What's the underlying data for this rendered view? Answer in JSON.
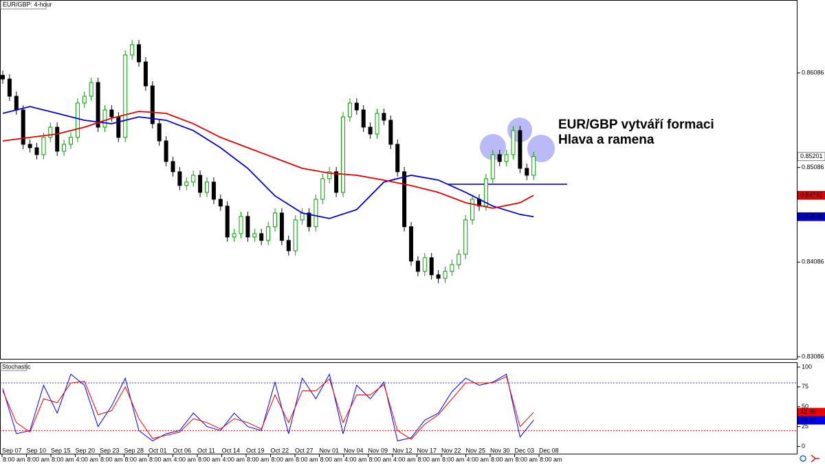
{
  "chart_data": [
    {
      "type": "candlestick",
      "title": "EUR/GBP: 4-hour",
      "annotation": [
        "EUR/GBP vytváří formaci",
        "Hlava a ramena"
      ],
      "up_color": "#00a000",
      "down_color": "#000000",
      "ylim": [
        0.83064,
        0.86856
      ],
      "yticks": [
        0.86086,
        0.85086,
        0.84086,
        0.83086
      ],
      "ohlc": [
        [
          0.8606,
          0.8611,
          0.85971,
          0.86021
        ],
        [
          0.86021,
          0.86071,
          0.85789,
          0.85839
        ],
        [
          0.85839,
          0.85889,
          0.85644,
          0.85694
        ],
        [
          0.85694,
          0.85744,
          0.85281,
          0.85331
        ],
        [
          0.85331,
          0.85381,
          0.85245,
          0.85295
        ],
        [
          0.85295,
          0.85345,
          0.85172,
          0.85222
        ],
        [
          0.85222,
          0.85454,
          0.85172,
          0.85404
        ],
        [
          0.85404,
          0.85562,
          0.85354,
          0.85512
        ],
        [
          0.85512,
          0.85562,
          0.85208,
          0.85258
        ],
        [
          0.85258,
          0.85381,
          0.85208,
          0.85331
        ],
        [
          0.85331,
          0.85454,
          0.85281,
          0.85404
        ],
        [
          0.85404,
          0.85817,
          0.85354,
          0.85767
        ],
        [
          0.85767,
          0.85889,
          0.85717,
          0.85839
        ],
        [
          0.85839,
          0.86034,
          0.85789,
          0.85984
        ],
        [
          0.85984,
          0.86034,
          0.85462,
          0.85512
        ],
        [
          0.85512,
          0.85744,
          0.85462,
          0.85694
        ],
        [
          0.85694,
          0.85744,
          0.85571,
          0.85621
        ],
        [
          0.85621,
          0.85671,
          0.85354,
          0.85404
        ],
        [
          0.85404,
          0.86325,
          0.85354,
          0.86275
        ],
        [
          0.86275,
          0.86434,
          0.86225,
          0.86384
        ],
        [
          0.86384,
          0.86434,
          0.86152,
          0.86202
        ],
        [
          0.86202,
          0.86252,
          0.85898,
          0.85948
        ],
        [
          0.85948,
          0.85998,
          0.85499,
          0.85549
        ],
        [
          0.85549,
          0.85599,
          0.85317,
          0.85367
        ],
        [
          0.85367,
          0.85417,
          0.85099,
          0.85149
        ],
        [
          0.85149,
          0.85199,
          0.84991,
          0.85041
        ],
        [
          0.85041,
          0.85091,
          0.84846,
          0.84896
        ],
        [
          0.84896,
          0.84982,
          0.84846,
          0.84932
        ],
        [
          0.84932,
          0.85054,
          0.84882,
          0.85004
        ],
        [
          0.85004,
          0.85054,
          0.84773,
          0.84823
        ],
        [
          0.84823,
          0.84982,
          0.84773,
          0.84932
        ],
        [
          0.84932,
          0.84982,
          0.847,
          0.8475
        ],
        [
          0.8475,
          0.848,
          0.84628,
          0.84678
        ],
        [
          0.84678,
          0.84728,
          0.84301,
          0.84351
        ],
        [
          0.84351,
          0.84437,
          0.84301,
          0.84387
        ],
        [
          0.84387,
          0.84619,
          0.84337,
          0.84569
        ],
        [
          0.84569,
          0.84619,
          0.84301,
          0.84351
        ],
        [
          0.84351,
          0.84437,
          0.84301,
          0.84387
        ],
        [
          0.84387,
          0.84437,
          0.84265,
          0.84315
        ],
        [
          0.84315,
          0.8451,
          0.84265,
          0.8446
        ],
        [
          0.8446,
          0.84655,
          0.8441,
          0.84605
        ],
        [
          0.84605,
          0.84655,
          0.84265,
          0.84315
        ],
        [
          0.84315,
          0.84365,
          0.84156,
          0.84206
        ],
        [
          0.84206,
          0.84582,
          0.84156,
          0.84532
        ],
        [
          0.84532,
          0.84655,
          0.84482,
          0.84605
        ],
        [
          0.84605,
          0.84655,
          0.8441,
          0.8446
        ],
        [
          0.8446,
          0.848,
          0.8441,
          0.8475
        ],
        [
          0.8475,
          0.85018,
          0.847,
          0.84968
        ],
        [
          0.84968,
          0.85091,
          0.84918,
          0.85041
        ],
        [
          0.85041,
          0.85091,
          0.84773,
          0.84823
        ],
        [
          0.84823,
          0.85671,
          0.84773,
          0.85621
        ],
        [
          0.85621,
          0.85817,
          0.85571,
          0.85767
        ],
        [
          0.85767,
          0.85817,
          0.85644,
          0.85694
        ],
        [
          0.85694,
          0.85744,
          0.85462,
          0.85512
        ],
        [
          0.85512,
          0.85562,
          0.8539,
          0.8544
        ],
        [
          0.8544,
          0.85708,
          0.8539,
          0.85658
        ],
        [
          0.85658,
          0.85708,
          0.85535,
          0.85585
        ],
        [
          0.85585,
          0.85635,
          0.85281,
          0.85331
        ],
        [
          0.85331,
          0.85381,
          0.84991,
          0.85041
        ],
        [
          0.85041,
          0.85091,
          0.8441,
          0.8446
        ],
        [
          0.8446,
          0.8451,
          0.84047,
          0.84097
        ],
        [
          0.84097,
          0.84147,
          0.83938,
          0.83988
        ],
        [
          0.83988,
          0.84183,
          0.83938,
          0.84133
        ],
        [
          0.84133,
          0.84183,
          0.83902,
          0.83952
        ],
        [
          0.83952,
          0.84002,
          0.83865,
          0.83915
        ],
        [
          0.83915,
          0.84038,
          0.83865,
          0.83988
        ],
        [
          0.83988,
          0.8411,
          0.83938,
          0.8406
        ],
        [
          0.8406,
          0.84219,
          0.8401,
          0.84169
        ],
        [
          0.84169,
          0.84582,
          0.84119,
          0.84532
        ],
        [
          0.84532,
          0.848,
          0.84482,
          0.8475
        ],
        [
          0.8475,
          0.848,
          0.84628,
          0.84678
        ],
        [
          0.84678,
          0.85018,
          0.84628,
          0.84968
        ],
        [
          0.84968,
          0.85272,
          0.84918,
          0.85222
        ],
        [
          0.85222,
          0.85272,
          0.85099,
          0.85149
        ],
        [
          0.85149,
          0.85272,
          0.85099,
          0.85222
        ],
        [
          0.85222,
          0.85526,
          0.85172,
          0.85476
        ],
        [
          0.85476,
          0.85526,
          0.85027,
          0.85077
        ],
        [
          0.85077,
          0.85127,
          0.84954,
          0.85004
        ],
        [
          0.85004,
          0.85251,
          0.84954,
          0.85201
        ]
      ],
      "series": [
        {
          "color": "#0000cc",
          "x": [
            0,
            4,
            8,
            12,
            16,
            20,
            24,
            28,
            32,
            36,
            40,
            44,
            48,
            52,
            56,
            60,
            64,
            68,
            72,
            76,
            78
          ],
          "values": [
            0.85658,
            0.8573,
            0.85658,
            0.85585,
            0.85549,
            0.85621,
            0.85585,
            0.85476,
            0.85295,
            0.85077,
            0.84786,
            0.84605,
            0.84547,
            0.84641,
            0.84932,
            0.85004,
            0.84953,
            0.84823,
            0.84678,
            0.8459,
            0.84566
          ]
        },
        {
          "color": "#e00000",
          "x": [
            0,
            4,
            8,
            12,
            16,
            20,
            24,
            28,
            32,
            36,
            40,
            44,
            48,
            52,
            56,
            60,
            64,
            68,
            72,
            76,
            78
          ],
          "values": [
            0.85367,
            0.85404,
            0.8544,
            0.85512,
            0.85607,
            0.85679,
            0.85658,
            0.85549,
            0.85404,
            0.85295,
            0.85186,
            0.85077,
            0.85026,
            0.85004,
            0.84953,
            0.84895,
            0.84823,
            0.84714,
            0.84656,
            0.84714,
            0.84792
          ]
        }
      ],
      "xlabels": [
        {
          "date": "Sep 07",
          "time": "8:00 am"
        },
        {
          "date": "Sep 10",
          "time": "8:00 am"
        },
        {
          "date": "Sep 15",
          "time": "8:00 am"
        },
        {
          "date": "Sep 20",
          "time": "4:00 am"
        },
        {
          "date": "Sep 23",
          "time": "8:00 am"
        },
        {
          "date": "Sep 28",
          "time": "8:00 am"
        },
        {
          "date": "Oct 01",
          "time": "8:00 am"
        },
        {
          "date": "Oct 06",
          "time": "4:00 am"
        },
        {
          "date": "Oct 11",
          "time": "8:00 am"
        },
        {
          "date": "Oct 14",
          "time": "4:00 am"
        },
        {
          "date": "Oct 19",
          "time": "8:00 am"
        },
        {
          "date": "Oct 22",
          "time": "8:00 am"
        },
        {
          "date": "Oct 27",
          "time": "8:00 am"
        },
        {
          "date": "Nov 01",
          "time": "8:00 am"
        },
        {
          "date": "Nov 04",
          "time": "4:00 am"
        },
        {
          "date": "Nov 09",
          "time": "8:00 am"
        },
        {
          "date": "Nov 12",
          "time": "4:00 am"
        },
        {
          "date": "Nov 17",
          "time": "8:00 am"
        },
        {
          "date": "Nov 22",
          "time": "8:00 am"
        },
        {
          "date": "Nov 25",
          "time": "4:00 am"
        },
        {
          "date": "Nov 30",
          "time": "8:00 am"
        },
        {
          "date": "Dec 03",
          "time": "8:00 am"
        },
        {
          "date": "Dec 08",
          "time": "8:00 am"
        }
      ]
    },
    {
      "type": "line",
      "title": "Stochastic",
      "x": [
        0,
        2,
        4,
        6,
        8,
        10,
        12,
        14,
        16,
        18,
        20,
        22,
        24,
        26,
        28,
        30,
        32,
        34,
        36,
        38,
        40,
        42,
        44,
        46,
        48,
        50,
        52,
        54,
        56,
        58,
        60,
        62,
        64,
        66,
        68,
        70,
        72,
        74,
        76,
        78
      ],
      "series": [
        {
          "color": "#0000ee",
          "values": [
            73,
            16,
            20,
            77,
            42,
            91,
            77,
            25,
            51,
            86,
            20,
            7,
            16,
            20,
            42,
            25,
            20,
            42,
            25,
            20,
            81,
            16,
            86,
            60,
            91,
            16,
            77,
            60,
            81,
            7,
            11,
            33,
            42,
            69,
            86,
            77,
            81,
            91,
            12,
            33.07
          ]
        },
        {
          "color": "#ee0000",
          "values": [
            70,
            30,
            18,
            60,
            55,
            80,
            82,
            40,
            45,
            75,
            35,
            10,
            14,
            18,
            35,
            30,
            22,
            35,
            30,
            22,
            65,
            30,
            70,
            70,
            85,
            30,
            65,
            65,
            78,
            20,
            9,
            28,
            40,
            60,
            80,
            80,
            80,
            88,
            25,
            42.99
          ]
        }
      ],
      "ylim": [
        -10,
        106
      ],
      "yticks": [
        100,
        75,
        50,
        25,
        0
      ],
      "levels": [
        80,
        20
      ],
      "level_colors": [
        "#3333cc",
        "#ee0000"
      ]
    }
  ]
}
